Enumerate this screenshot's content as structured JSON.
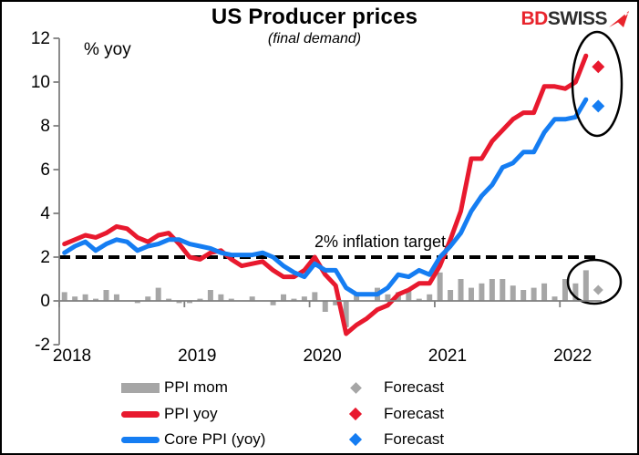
{
  "header": {
    "title": "US Producer prices",
    "subtitle": "(final demand)"
  },
  "logo": {
    "text_red": "BD",
    "text_dark": "SWISS",
    "arrow_color": "#e8242c"
  },
  "colors": {
    "ppi_mom": "#a6a6a6",
    "ppi_yoy": "#e8192e",
    "core_ppi": "#157df2",
    "axis": "#7f7f7f",
    "target_line": "#000000"
  },
  "chart_data": {
    "type": "mixed",
    "title": "US Producer prices",
    "subtitle": "(final demand)",
    "unit_label": "% yoy",
    "xlabel": "",
    "ylabel": "% yoy",
    "ylim": [
      -2,
      12
    ],
    "y_ticks": [
      12,
      10,
      8,
      6,
      4,
      2,
      0,
      -2
    ],
    "x_tick_labels": [
      "2018",
      "2019",
      "2020",
      "2021",
      "2022"
    ],
    "x_start": "2018-01",
    "x_end": "2022-03",
    "forecast_x": "2022-04",
    "months_per_year": 12,
    "grid": false,
    "annotation": {
      "text": "2% inflation target",
      "value": 2
    },
    "series": [
      {
        "name": "PPI mom",
        "type": "bar",
        "color": "#a6a6a6",
        "values": [
          0.4,
          0.2,
          0.3,
          0.1,
          0.5,
          0.3,
          0.0,
          -0.1,
          0.2,
          0.6,
          0.1,
          -0.1,
          -0.1,
          0.1,
          0.5,
          0.3,
          0.1,
          0.0,
          0.2,
          0.0,
          -0.2,
          0.3,
          0.1,
          0.2,
          0.4,
          -0.5,
          -0.2,
          -1.2,
          0.4,
          0.0,
          0.6,
          0.3,
          0.4,
          0.5,
          0.1,
          0.3,
          1.3,
          0.5,
          1.0,
          0.6,
          0.8,
          1.0,
          1.0,
          0.7,
          0.5,
          0.6,
          0.8,
          0.2,
          1.0,
          0.8,
          1.4
        ]
      },
      {
        "name": "PPI yoy",
        "type": "line",
        "color": "#e8192e",
        "values": [
          2.6,
          2.8,
          3.0,
          2.9,
          3.1,
          3.4,
          3.3,
          2.9,
          2.7,
          3.0,
          3.1,
          2.6,
          2.0,
          1.9,
          2.2,
          2.3,
          1.9,
          1.6,
          1.7,
          1.8,
          1.4,
          1.1,
          1.1,
          1.4,
          2.0,
          1.2,
          0.7,
          -1.5,
          -1.1,
          -0.8,
          -0.4,
          -0.2,
          0.3,
          0.5,
          0.8,
          0.8,
          1.6,
          2.8,
          4.1,
          6.5,
          6.5,
          7.3,
          7.8,
          8.3,
          8.6,
          8.6,
          9.8,
          9.8,
          9.7,
          10.0,
          11.2
        ]
      },
      {
        "name": "Core PPI (yoy)",
        "type": "line",
        "color": "#157df2",
        "values": [
          2.2,
          2.5,
          2.7,
          2.3,
          2.6,
          2.8,
          2.7,
          2.3,
          2.5,
          2.6,
          2.8,
          2.8,
          2.6,
          2.5,
          2.4,
          2.2,
          2.1,
          2.1,
          2.1,
          2.2,
          2.0,
          1.6,
          1.3,
          1.1,
          1.7,
          1.4,
          1.4,
          0.6,
          0.3,
          0.3,
          0.3,
          0.6,
          1.2,
          1.1,
          1.4,
          1.2,
          2.0,
          2.5,
          3.1,
          4.1,
          4.8,
          5.3,
          6.1,
          6.3,
          6.8,
          6.8,
          7.7,
          8.3,
          8.3,
          8.4,
          9.2
        ]
      }
    ],
    "forecasts": [
      {
        "name": "Forecast",
        "series": "PPI mom",
        "color": "#a6a6a6",
        "value": 0.5
      },
      {
        "name": "Forecast",
        "series": "PPI yoy",
        "color": "#e8192e",
        "value": 10.7
      },
      {
        "name": "Forecast",
        "series": "Core PPI (yoy)",
        "color": "#157df2",
        "value": 8.9
      }
    ],
    "legend_position": "bottom"
  },
  "legend": {
    "rows": [
      {
        "left": {
          "label": "PPI mom",
          "swatch": "bar",
          "color": "#a6a6a6"
        },
        "right": {
          "label": "Forecast",
          "shape": "diamond",
          "color": "#a6a6a6"
        }
      },
      {
        "left": {
          "label": "PPI yoy",
          "swatch": "line",
          "color": "#e8192e"
        },
        "right": {
          "label": "Forecast",
          "shape": "diamond",
          "color": "#e8192e"
        }
      },
      {
        "left": {
          "label": "Core PPI (yoy)",
          "swatch": "line",
          "color": "#157df2"
        },
        "right": {
          "label": "Forecast",
          "shape": "diamond",
          "color": "#157df2"
        }
      }
    ]
  }
}
